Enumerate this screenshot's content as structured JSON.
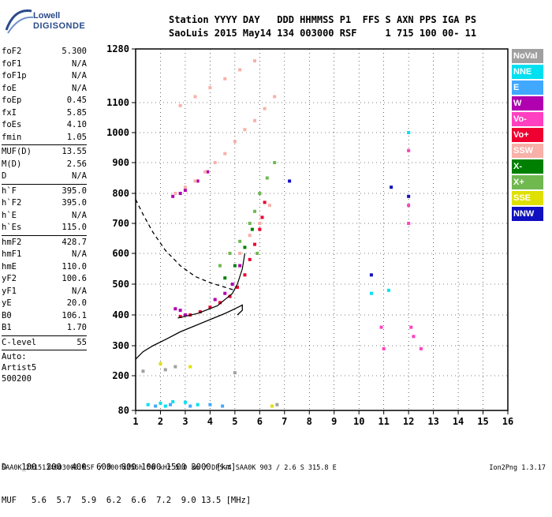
{
  "logo": {
    "line1": "Lowell",
    "line2": "DIGISONDE"
  },
  "header": {
    "line1": "Station YYYY DAY   DDD HHMMSS P1  FFS S AXN PPS IGA PS",
    "line2": "SaoLuis 2015 May14 134 003000 RSF     1 715 100 00- 11"
  },
  "params": [
    {
      "name": "foF2",
      "value": "5.300"
    },
    {
      "name": "foF1",
      "value": "N/A"
    },
    {
      "name": "foF1p",
      "value": "N/A"
    },
    {
      "name": "foE",
      "value": "N/A"
    },
    {
      "name": "foEp",
      "value": "0.45"
    },
    {
      "name": "fxI",
      "value": "5.85"
    },
    {
      "name": "foEs",
      "value": "4.10"
    },
    {
      "name": "fmin",
      "value": "1.05"
    },
    {
      "name": "MUF(D)",
      "value": "13.55"
    },
    {
      "name": "M(D)",
      "value": "2.56"
    },
    {
      "name": "D",
      "value": "N/A"
    },
    {
      "name": "h`F",
      "value": "395.0"
    },
    {
      "name": "h`F2",
      "value": "395.0"
    },
    {
      "name": "h`E",
      "value": "N/A"
    },
    {
      "name": "h`Es",
      "value": "115.0"
    },
    {
      "name": "hmF2",
      "value": "428.7"
    },
    {
      "name": "hmF1",
      "value": "N/A"
    },
    {
      "name": "hmE",
      "value": "110.0"
    },
    {
      "name": "yF2",
      "value": "100.6"
    },
    {
      "name": "yF1",
      "value": "N/A"
    },
    {
      "name": "yE",
      "value": "20.0"
    },
    {
      "name": "B0",
      "value": "106.1"
    },
    {
      "name": "B1",
      "value": "1.70"
    },
    {
      "name": "C-level",
      "value": "55"
    }
  ],
  "autoscaling": {
    "label": "Auto:",
    "artist": "Artist5",
    "version": "500200"
  },
  "legend": [
    {
      "label": "NoVal",
      "color": "#a0a0a0"
    },
    {
      "label": "NNE",
      "color": "#00e0f0"
    },
    {
      "label": "E",
      "color": "#40a8ff"
    },
    {
      "label": "W",
      "color": "#b000b0"
    },
    {
      "label": "Vo-",
      "color": "#ff40c0"
    },
    {
      "label": "Vo+",
      "color": "#f00030"
    },
    {
      "label": "SSW",
      "color": "#f8b0a8"
    },
    {
      "label": "X-",
      "color": "#008000"
    },
    {
      "label": "X+",
      "color": "#70b850"
    },
    {
      "label": "SSE",
      "color": "#e0e000"
    },
    {
      "label": "NNW",
      "color": "#1010c0"
    }
  ],
  "muf_table": {
    "d_label": "D",
    "muf_label": "MUF",
    "distances": [
      "100",
      "200",
      "400",
      "600",
      "800",
      "1000",
      "1500",
      "3000 [km]"
    ],
    "mufs": [
      "5.6",
      "5.7",
      "5.9",
      "6.2",
      "6.6",
      "7.2",
      "9.0",
      "13.5 [MHz]"
    ]
  },
  "footer": {
    "left": "SAA0K_2015134003000.RSF / 300fx256h 50 kHz 5.0 km / DPS-4 SAA0K 903 / 2.6 S 315.8 E",
    "right": "Ion2Png 1.3.17"
  },
  "chart_data": {
    "type": "scatter",
    "title": "",
    "xlabel": "",
    "ylabel": "",
    "xlim": [
      1,
      16
    ],
    "ylim": [
      80,
      1280
    ],
    "x_ticks": [
      "1",
      "2",
      "3",
      "4",
      "5",
      "6",
      "7",
      "8",
      "9",
      "10",
      "11",
      "12",
      "13",
      "14",
      "15",
      "16"
    ],
    "y_ticks": [
      "80",
      "200",
      "300",
      "400",
      "500",
      "600",
      "700",
      "800",
      "900",
      "1000",
      "1100",
      "1280"
    ],
    "y_tick_values": [
      80,
      200,
      300,
      400,
      500,
      600,
      700,
      800,
      900,
      1000,
      1100,
      1280
    ],
    "grid": true,
    "series": [
      {
        "color": "#f00030",
        "points": [
          [
            2.8,
            395
          ],
          [
            3.2,
            400
          ],
          [
            3.6,
            410
          ],
          [
            4.0,
            425
          ],
          [
            4.4,
            440
          ],
          [
            4.8,
            460
          ],
          [
            5.1,
            490
          ],
          [
            5.4,
            530
          ],
          [
            5.6,
            580
          ],
          [
            5.8,
            630
          ],
          [
            6.0,
            680
          ],
          [
            6.1,
            720
          ],
          [
            6.2,
            770
          ]
        ]
      },
      {
        "color": "#b000b0",
        "points": [
          [
            2.6,
            420
          ],
          [
            2.8,
            415
          ],
          [
            3.0,
            400
          ],
          [
            4.2,
            450
          ],
          [
            4.6,
            470
          ],
          [
            4.9,
            500
          ],
          [
            5.2,
            560
          ],
          [
            2.5,
            790
          ],
          [
            2.8,
            800
          ],
          [
            3.0,
            810
          ],
          [
            3.5,
            840
          ],
          [
            3.9,
            870
          ]
        ]
      },
      {
        "color": "#f8b0a8",
        "points": [
          [
            2.6,
            800
          ],
          [
            3.0,
            820
          ],
          [
            3.4,
            840
          ],
          [
            3.8,
            870
          ],
          [
            4.2,
            900
          ],
          [
            4.6,
            930
          ],
          [
            5.0,
            970
          ],
          [
            5.4,
            1010
          ],
          [
            5.8,
            1040
          ],
          [
            6.2,
            1080
          ],
          [
            6.6,
            1120
          ],
          [
            2.8,
            1090
          ],
          [
            3.4,
            1120
          ],
          [
            4.0,
            1150
          ],
          [
            4.6,
            1180
          ],
          [
            5.2,
            1210
          ],
          [
            5.8,
            1240
          ],
          [
            5.2,
            600
          ],
          [
            5.6,
            660
          ],
          [
            6.0,
            700
          ],
          [
            6.4,
            760
          ]
        ]
      },
      {
        "color": "#70b850",
        "points": [
          [
            4.4,
            560
          ],
          [
            4.8,
            600
          ],
          [
            5.2,
            640
          ],
          [
            5.6,
            700
          ],
          [
            5.8,
            740
          ],
          [
            6.0,
            800
          ],
          [
            6.3,
            850
          ],
          [
            6.6,
            900
          ],
          [
            5.9,
            600
          ]
        ]
      },
      {
        "color": "#008000",
        "points": [
          [
            4.6,
            520
          ],
          [
            5.0,
            560
          ],
          [
            5.4,
            620
          ],
          [
            5.7,
            680
          ]
        ]
      },
      {
        "color": "#00e0f0",
        "points": [
          [
            1.5,
            100
          ],
          [
            2.0,
            105
          ],
          [
            2.5,
            110
          ],
          [
            3.0,
            108
          ],
          [
            3.5,
            100
          ],
          [
            2.2,
            95
          ],
          [
            12.0,
            1000
          ],
          [
            11.2,
            480
          ],
          [
            10.5,
            470
          ]
        ]
      },
      {
        "color": "#40a8ff",
        "points": [
          [
            1.8,
            95
          ],
          [
            2.4,
            100
          ],
          [
            3.2,
            95
          ],
          [
            4.0,
            100
          ],
          [
            4.5,
            95
          ]
        ]
      },
      {
        "color": "#ff40c0",
        "points": [
          [
            12.0,
            700
          ],
          [
            12.0,
            760
          ],
          [
            12.0,
            940
          ],
          [
            12.2,
            330
          ],
          [
            12.5,
            290
          ],
          [
            11.0,
            290
          ],
          [
            10.9,
            360
          ],
          [
            12.1,
            360
          ]
        ]
      },
      {
        "color": "#1010c0",
        "points": [
          [
            7.2,
            840
          ],
          [
            11.3,
            820
          ],
          [
            12.0,
            790
          ],
          [
            10.5,
            530
          ]
        ]
      },
      {
        "color": "#e0e000",
        "points": [
          [
            2.0,
            240
          ],
          [
            3.2,
            230
          ],
          [
            6.5,
            95
          ]
        ]
      },
      {
        "color": "#a0a0a0",
        "points": [
          [
            1.3,
            215
          ],
          [
            2.2,
            220
          ],
          [
            2.6,
            230
          ],
          [
            5.0,
            210
          ],
          [
            6.7,
            100
          ]
        ]
      }
    ],
    "profile_solid": [
      [
        1.0,
        255
      ],
      [
        1.3,
        280
      ],
      [
        1.7,
        300
      ],
      [
        2.2,
        320
      ],
      [
        2.8,
        345
      ],
      [
        3.4,
        365
      ],
      [
        4.0,
        385
      ],
      [
        4.6,
        405
      ],
      [
        5.0,
        420
      ],
      [
        5.2,
        428
      ],
      [
        5.3,
        432
      ],
      [
        5.3,
        415
      ],
      [
        5.1,
        400
      ]
    ],
    "profile_dashed": [
      [
        1.0,
        780
      ],
      [
        1.3,
        730
      ],
      [
        1.7,
        670
      ],
      [
        2.2,
        610
      ],
      [
        2.8,
        560
      ],
      [
        3.4,
        525
      ],
      [
        4.0,
        505
      ],
      [
        4.6,
        490
      ],
      [
        5.0,
        480
      ]
    ],
    "trace": [
      [
        2.7,
        390
      ],
      [
        3.5,
        405
      ],
      [
        4.3,
        430
      ],
      [
        4.9,
        470
      ],
      [
        5.1,
        500
      ],
      [
        5.3,
        550
      ],
      [
        5.4,
        600
      ]
    ]
  }
}
